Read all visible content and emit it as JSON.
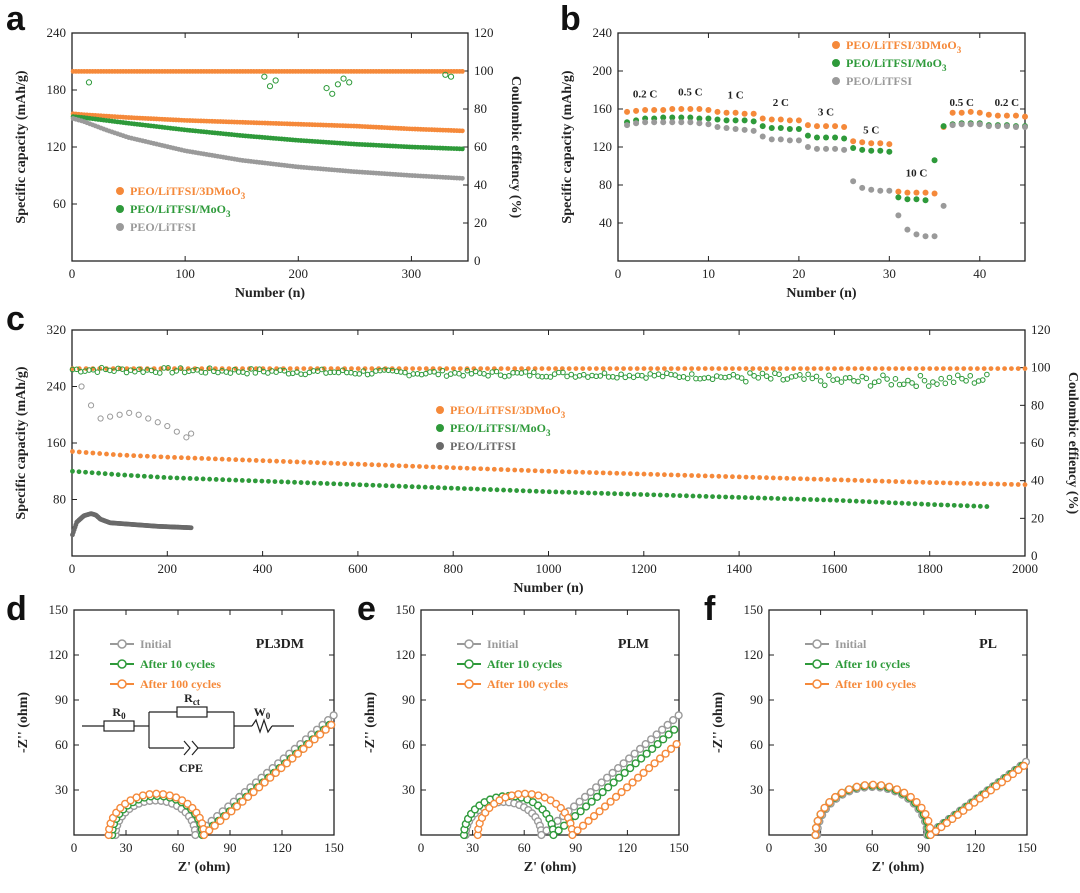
{
  "colors": {
    "orange": "#f5893a",
    "green": "#2e9a3a",
    "gray": "#9a9a9a",
    "dark_gray": "#6a6a6a",
    "axis": "#222222"
  },
  "chart_data": [
    {
      "id": "a",
      "panel_label": "a",
      "type": "scatter",
      "xlabel": "Number (n)",
      "ylabel": "Specific capacity (mAh/g)",
      "y2label": "Coulombic effiency (%)",
      "xlim": [
        0,
        350
      ],
      "ylim": [
        0,
        240
      ],
      "y2lim": [
        0,
        120
      ],
      "xticks": [
        0,
        100,
        200,
        300
      ],
      "yticks": [
        60,
        120,
        180,
        240
      ],
      "y2ticks": [
        0,
        20,
        40,
        60,
        80,
        100,
        120
      ],
      "legend_position": "lower-left",
      "series": [
        {
          "name": "PEO/LiTFSI/3DMoO3",
          "label": "PEO/LiTFSI/3DMoO",
          "sub": "3",
          "color_key": "orange",
          "kind": "line",
          "x": [
            1,
            10,
            50,
            100,
            150,
            200,
            250,
            300,
            345
          ],
          "y": [
            155,
            154,
            151,
            148,
            146,
            144,
            142,
            139,
            137
          ]
        },
        {
          "name": "PEO/LiTFSI/MoO3",
          "label": "PEO/LiTFSI/MoO",
          "sub": "3",
          "color_key": "green",
          "kind": "line",
          "x": [
            1,
            10,
            50,
            100,
            150,
            200,
            250,
            300,
            345
          ],
          "y": [
            152,
            151,
            145,
            138,
            132,
            127,
            123,
            120,
            118
          ]
        },
        {
          "name": "PEO/LiTFSI",
          "label": "PEO/LiTFSI",
          "sub": "",
          "color_key": "gray",
          "kind": "line",
          "x": [
            1,
            10,
            30,
            50,
            100,
            150,
            200,
            250,
            300,
            345
          ],
          "y": [
            150,
            147,
            138,
            130,
            116,
            106,
            99,
            94,
            90,
            87
          ]
        },
        {
          "name": "CE PEO/LiTFSI/3DMoO3",
          "color_key": "orange",
          "kind": "ce_line",
          "axis": "y2",
          "x": [
            1,
            345
          ],
          "y": [
            99.8,
            99.8
          ]
        },
        {
          "name": "CE PEO/LiTFSI/MoO3",
          "color_key": "green",
          "kind": "ce_points",
          "axis": "y2",
          "x": [
            15,
            170,
            175,
            180,
            225,
            230,
            235,
            240,
            245,
            330,
            335
          ],
          "y": [
            94,
            97,
            92,
            95,
            91,
            88,
            93,
            96,
            94,
            98,
            97
          ]
        }
      ]
    },
    {
      "id": "b",
      "panel_label": "b",
      "type": "scatter",
      "xlabel": "Number (n)",
      "ylabel": "Specific capacity (mAh/g)",
      "xlim": [
        0,
        45
      ],
      "ylim": [
        0,
        240
      ],
      "xticks": [
        0,
        10,
        20,
        30,
        40
      ],
      "yticks": [
        40,
        80,
        120,
        160,
        200,
        240
      ],
      "legend_position": "top-right",
      "rate_labels": [
        {
          "text": "0.2 C",
          "x": 3,
          "y": 172
        },
        {
          "text": "0.5 C",
          "x": 8,
          "y": 174
        },
        {
          "text": "1 C",
          "x": 13,
          "y": 171
        },
        {
          "text": "2 C",
          "x": 18,
          "y": 163
        },
        {
          "text": "3 C",
          "x": 23,
          "y": 153
        },
        {
          "text": "5 C",
          "x": 28,
          "y": 134
        },
        {
          "text": "10 C",
          "x": 33,
          "y": 89
        },
        {
          "text": "0.5 C",
          "x": 38,
          "y": 163
        },
        {
          "text": "0.2 C",
          "x": 43,
          "y": 163
        }
      ],
      "series": [
        {
          "name": "PEO/LiTFSI/3DMoO3",
          "label": "PEO/LiTFSI/3DMoO",
          "sub": "3",
          "color_key": "orange",
          "x": [
            1,
            2,
            3,
            4,
            5,
            6,
            7,
            8,
            9,
            10,
            11,
            12,
            13,
            14,
            15,
            16,
            17,
            18,
            19,
            20,
            21,
            22,
            23,
            24,
            25,
            26,
            27,
            28,
            29,
            30,
            31,
            32,
            33,
            34,
            35,
            36,
            37,
            38,
            39,
            40,
            41,
            42,
            43,
            44,
            45
          ],
          "y": [
            157,
            158,
            159,
            159,
            159,
            160,
            160,
            160,
            160,
            159,
            157,
            156,
            156,
            155,
            155,
            150,
            149,
            149,
            148,
            148,
            143,
            142,
            142,
            142,
            141,
            126,
            125,
            124,
            124,
            123,
            73,
            72,
            72,
            72,
            71,
            141,
            156,
            156,
            157,
            156,
            154,
            153,
            153,
            153,
            152
          ]
        },
        {
          "name": "PEO/LiTFSI/MoO3",
          "label": "PEO/LiTFSI/MoO",
          "sub": "3",
          "color_key": "green",
          "x": [
            1,
            2,
            3,
            4,
            5,
            6,
            7,
            8,
            9,
            10,
            11,
            12,
            13,
            14,
            15,
            16,
            17,
            18,
            19,
            20,
            21,
            22,
            23,
            24,
            25,
            26,
            27,
            28,
            29,
            30,
            31,
            32,
            33,
            34,
            35,
            36,
            37,
            38,
            39,
            40,
            41,
            42,
            43,
            44,
            45
          ],
          "y": [
            146,
            148,
            150,
            150,
            151,
            151,
            151,
            151,
            150,
            150,
            149,
            148,
            148,
            148,
            147,
            142,
            140,
            140,
            139,
            139,
            132,
            130,
            130,
            130,
            129,
            119,
            117,
            116,
            116,
            115,
            67,
            65,
            65,
            64,
            106,
            142,
            144,
            145,
            145,
            145,
            143,
            143,
            143,
            142,
            142
          ]
        },
        {
          "name": "PEO/LiTFSI",
          "label": "PEO/LiTFSI",
          "sub": "",
          "color_key": "gray",
          "x": [
            1,
            2,
            3,
            4,
            5,
            6,
            7,
            8,
            9,
            10,
            11,
            12,
            13,
            14,
            15,
            16,
            17,
            18,
            19,
            20,
            21,
            22,
            23,
            24,
            25,
            26,
            27,
            28,
            29,
            30,
            31,
            32,
            33,
            34,
            35,
            36,
            37,
            38,
            39,
            40,
            41,
            42,
            43,
            44,
            45
          ],
          "y": [
            143,
            145,
            146,
            146,
            146,
            146,
            146,
            146,
            145,
            144,
            141,
            140,
            139,
            138,
            137,
            131,
            128,
            128,
            127,
            127,
            120,
            118,
            118,
            118,
            117,
            84,
            77,
            75,
            74,
            74,
            48,
            33,
            28,
            26,
            26,
            58,
            143,
            144,
            144,
            144,
            142,
            142,
            142,
            141,
            141
          ]
        }
      ]
    },
    {
      "id": "c",
      "panel_label": "c",
      "type": "scatter",
      "xlabel": "Number (n)",
      "ylabel": "Specific capacity (mAh/g)",
      "y2label": "Coulombic effiency (%)",
      "xlim": [
        0,
        2000
      ],
      "ylim": [
        0,
        320
      ],
      "y2lim": [
        0,
        120
      ],
      "xticks": [
        0,
        200,
        400,
        600,
        800,
        1000,
        1200,
        1400,
        1600,
        1800,
        2000
      ],
      "yticks": [
        80,
        160,
        240,
        320
      ],
      "y2ticks": [
        0,
        20,
        40,
        60,
        80,
        100,
        120
      ],
      "legend_position": "center",
      "series": [
        {
          "name": "PEO/LiTFSI/3DMoO3",
          "label": "PEO/LiTFSI/3DMoO",
          "sub": "3",
          "color_key": "orange",
          "kind": "line",
          "x": [
            1,
            100,
            200,
            400,
            600,
            800,
            1000,
            1200,
            1400,
            1600,
            1800,
            2000
          ],
          "y": [
            148,
            143,
            140,
            135,
            130,
            125,
            120,
            116,
            112,
            108,
            104,
            101
          ]
        },
        {
          "name": "PEO/LiTFSI/MoO3",
          "label": "PEO/LiTFSI/MoO",
          "sub": "3",
          "color_key": "green",
          "kind": "line",
          "x": [
            1,
            100,
            200,
            400,
            600,
            800,
            1000,
            1200,
            1400,
            1600,
            1800,
            1920
          ],
          "y": [
            120,
            115,
            111,
            106,
            101,
            96,
            91,
            87,
            83,
            79,
            73,
            70
          ]
        },
        {
          "name": "PEO/LiTFSI",
          "label": "PEO/LiTFSI",
          "sub": "",
          "color_key": "dark_gray",
          "kind": "line",
          "x": [
            1,
            10,
            25,
            40,
            50,
            60,
            80,
            120,
            180,
            250
          ],
          "y": [
            30,
            48,
            57,
            60,
            58,
            52,
            47,
            45,
            42,
            40
          ]
        },
        {
          "name": "CE PEO/LiTFSI/3DMoO3",
          "color_key": "orange",
          "kind": "ce_line",
          "axis": "y2",
          "x": [
            1,
            2000
          ],
          "y": [
            99.5,
            99.5
          ]
        },
        {
          "name": "CE PEO/LiTFSI/MoO3",
          "color_key": "green",
          "kind": "ce_band",
          "axis": "y2",
          "x": [
            1,
            200,
            400,
            600,
            800,
            1000,
            1200,
            1400,
            1600,
            1800,
            1920
          ],
          "y": [
            99,
            98.5,
            98,
            97.5,
            97,
            96.5,
            96,
            95,
            93,
            93,
            94
          ]
        },
        {
          "name": "CE PEO/LiTFSI",
          "color_key": "gray",
          "kind": "ce_points",
          "axis": "y2",
          "x": [
            20,
            40,
            60,
            80,
            100,
            120,
            140,
            160,
            180,
            200,
            220,
            240,
            250
          ],
          "y": [
            90,
            80,
            73,
            74,
            75,
            76,
            75,
            73,
            71,
            69,
            66,
            63,
            65
          ]
        }
      ]
    },
    {
      "id": "d",
      "panel_label": "d",
      "type": "scatter",
      "tag": "PL3DM",
      "xlabel": "Z' (ohm)",
      "ylabel": "-Z'' (ohm)",
      "xlim": [
        0,
        150
      ],
      "ylim": [
        0,
        150
      ],
      "xticks": [
        0,
        30,
        60,
        90,
        120,
        150
      ],
      "yticks": [
        30,
        60,
        90,
        120,
        150
      ],
      "legend_position": "top-left",
      "circuit": {
        "r0": "R",
        "r0_sub": "0",
        "rct": "R",
        "rct_sub": "ct",
        "w0": "W",
        "w0_sub": "0",
        "cpe": "CPE"
      },
      "series": [
        {
          "name": "Initial",
          "color_key": "gray",
          "r0": 24,
          "rd": 46,
          "tail_slope": 1.0,
          "x_end": 150
        },
        {
          "name": "After 10 cycles",
          "color_key": "green",
          "r0": 22,
          "rd": 52,
          "tail_slope": 1.0,
          "x_end": 150
        },
        {
          "name": "After 100 cycles",
          "color_key": "orange",
          "r0": 20,
          "rd": 55,
          "tail_slope": 1.0,
          "x_end": 150
        }
      ]
    },
    {
      "id": "e",
      "panel_label": "e",
      "type": "scatter",
      "tag": "PLM",
      "xlabel": "Z' (ohm)",
      "ylabel": "-Z'' (ohm)",
      "xlim": [
        0,
        150
      ],
      "ylim": [
        0,
        150
      ],
      "xticks": [
        0,
        30,
        60,
        90,
        120,
        150
      ],
      "yticks": [
        30,
        60,
        90,
        120,
        150
      ],
      "legend_position": "top-left",
      "series": [
        {
          "name": "Initial",
          "color_key": "gray",
          "r0": 26,
          "rd": 44,
          "tail_slope": 1.0,
          "x_end": 150
        },
        {
          "name": "After 10 cycles",
          "color_key": "green",
          "r0": 25,
          "rd": 52,
          "tail_slope": 1.0,
          "x_end": 150
        },
        {
          "name": "After 100 cycles",
          "color_key": "orange",
          "r0": 33,
          "rd": 55,
          "tail_slope": 1.0,
          "x_end": 150
        }
      ]
    },
    {
      "id": "f",
      "panel_label": "f",
      "type": "scatter",
      "tag": "PL",
      "xlabel": "Z' (ohm)",
      "ylabel": "-Z'' (ohm)",
      "xlim": [
        0,
        150
      ],
      "ylim": [
        0,
        150
      ],
      "xticks": [
        0,
        30,
        60,
        90,
        120,
        150
      ],
      "yticks": [
        30,
        60,
        90,
        120,
        150
      ],
      "legend_position": "top-left",
      "series": [
        {
          "name": "Initial",
          "color_key": "gray",
          "r0": 28,
          "rd": 64,
          "tail_slope": 0.85,
          "x_end": 150
        },
        {
          "name": "After 10 cycles",
          "color_key": "green",
          "r0": 27,
          "rd": 66,
          "tail_slope": 0.85,
          "x_end": 150
        },
        {
          "name": "After 100 cycles",
          "color_key": "orange",
          "r0": 27,
          "rd": 67,
          "tail_slope": 0.85,
          "x_end": 150
        }
      ]
    }
  ]
}
